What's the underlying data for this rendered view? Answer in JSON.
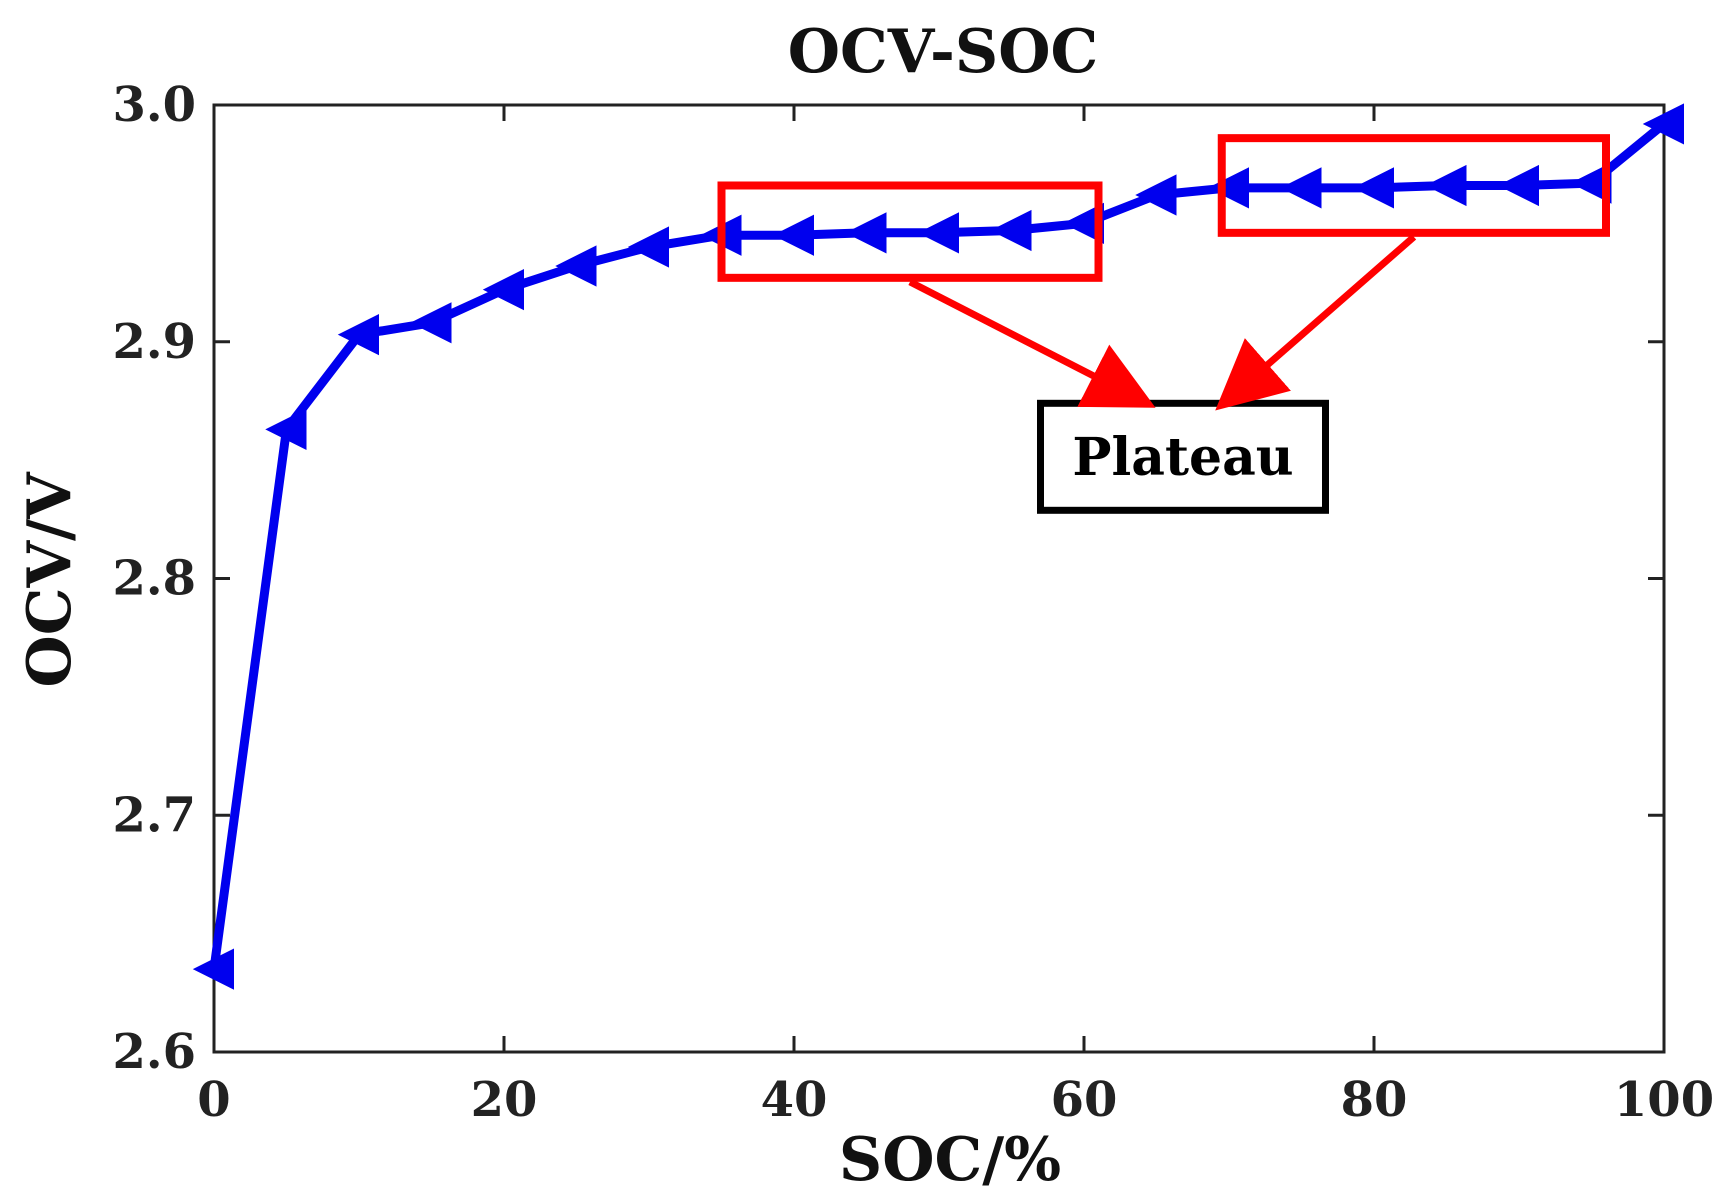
{
  "chart_data": {
    "type": "line",
    "title": "OCV-SOC",
    "xlabel": "SOC/%",
    "ylabel": "OCV/V",
    "xlim": [
      0,
      100
    ],
    "ylim": [
      2.6,
      3.0
    ],
    "xticks": [
      0,
      20,
      40,
      60,
      80,
      100
    ],
    "xtick_labels": [
      "0",
      "20",
      "40",
      "60",
      "80",
      "100"
    ],
    "yticks": [
      2.6,
      2.7,
      2.8,
      2.9,
      3.0
    ],
    "ytick_labels": [
      "2.6",
      "2.7",
      "2.8",
      "2.9",
      "3.0"
    ],
    "grid": false,
    "series": [
      {
        "name": "OCV",
        "color": "#0000ee",
        "marker": "triangle-left",
        "x": [
          0,
          5,
          10,
          15,
          20,
          25,
          30,
          35,
          40,
          45,
          50,
          55,
          60,
          65,
          70,
          75,
          80,
          85,
          90,
          95,
          100
        ],
        "y": [
          2.635,
          2.863,
          2.903,
          2.908,
          2.922,
          2.932,
          2.94,
          2.945,
          2.945,
          2.946,
          2.946,
          2.947,
          2.95,
          2.962,
          2.965,
          2.965,
          2.965,
          2.966,
          2.966,
          2.967,
          2.992
        ]
      }
    ],
    "annotations": {
      "label": "Plateau",
      "label_color": "#000000",
      "highlight_color": "#ff0000",
      "regions": [
        {
          "x_range": [
            35,
            61
          ],
          "y_range": [
            2.927,
            2.966
          ]
        },
        {
          "x_range": [
            69.5,
            96
          ],
          "y_range": [
            2.946,
            2.986
          ]
        }
      ]
    }
  }
}
